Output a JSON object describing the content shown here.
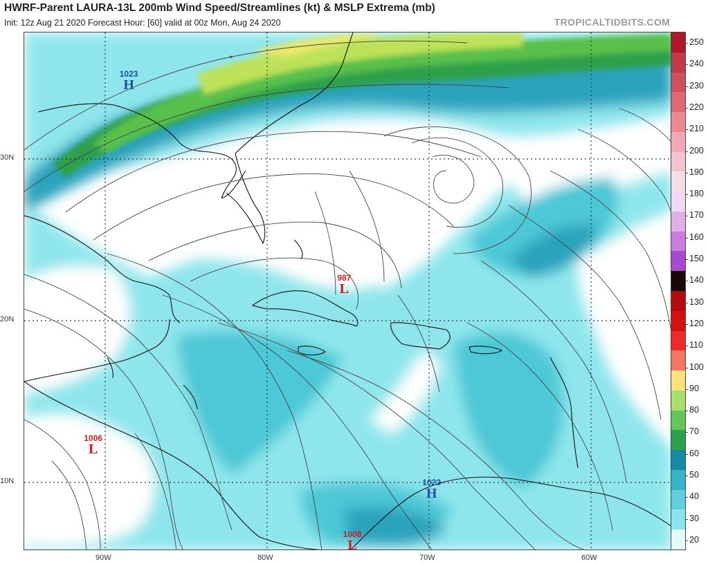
{
  "header": {
    "title": "HWRF-Parent LAURA-13L 200mb Wind Speed/Streamlines (kt) & MSLP Extrema (mb)",
    "subtitle": "Init: 12z Aug 21 2020   Forecast Hour: [60]   valid at 00z Mon, Aug 24 2020",
    "brand": "TROPICALTIDBITS.COM"
  },
  "map": {
    "lat_labels": [
      "30N",
      "20N",
      "10N"
    ],
    "lon_labels": [
      "90W",
      "80W",
      "70W",
      "60W"
    ],
    "extent": {
      "lon_min": -94.8,
      "lon_max": -54.8,
      "lat_min": 5.7,
      "lat_max": 37.7
    },
    "colors": {
      "calm": "#ffffff",
      "low": "#8ee6ec",
      "mid": "#4dc8d6",
      "high": "#2aa3bc",
      "jet1": "#1e8aa8",
      "jet2": "#2fa04c",
      "jet3": "#58c04c",
      "jet4": "#bde25a",
      "jet5": "#e8e86a"
    }
  },
  "markers": [
    {
      "type": "H",
      "value": "1023",
      "color": "#1e50a0",
      "lon": -88.3,
      "lat": 34.5
    },
    {
      "type": "L",
      "value": "987",
      "color": "#c81e1e",
      "lon": -75.0,
      "lat": 21.9
    },
    {
      "type": "L",
      "value": "1006",
      "color": "#c81e1e",
      "lon": -90.5,
      "lat": 12.0
    },
    {
      "type": "H",
      "value": "1023",
      "color": "#1e50a0",
      "lon": -69.6,
      "lat": 9.3
    },
    {
      "type": "L",
      "value": "1008",
      "color": "#c81e1e",
      "lon": -74.5,
      "lat": 6.1
    }
  ],
  "colorbar": {
    "labels": [
      "250",
      "240",
      "230",
      "220",
      "210",
      "200",
      "190",
      "180",
      "170",
      "160",
      "150",
      "140",
      "130",
      "120",
      "110",
      "100",
      "90",
      "80",
      "70",
      "60",
      "50",
      "40",
      "30",
      "20"
    ],
    "colors": [
      "#b0172b",
      "#c23a4a",
      "#d2505e",
      "#e06874",
      "#ea8894",
      "#f0a8b2",
      "#f4c4cc",
      "#f6dde5",
      "#f2d8f2",
      "#e2aee6",
      "#c87ede",
      "#a84ace",
      "#180808",
      "#b40c0c",
      "#d41010",
      "#ee2a2a",
      "#f27662",
      "#f8e27a",
      "#aade6c",
      "#62c65a",
      "#2aa050",
      "#188aa4",
      "#38b4c8",
      "#62cede",
      "#8ae4ea",
      "#e6f8fa"
    ]
  }
}
